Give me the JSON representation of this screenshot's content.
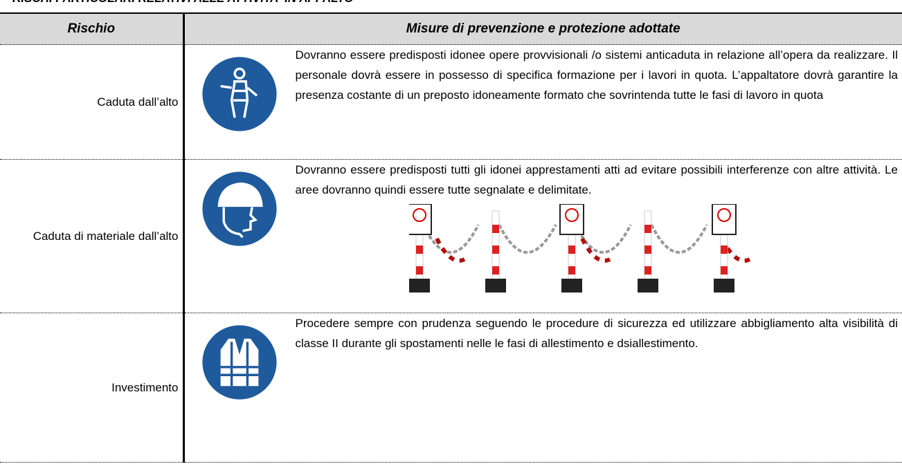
{
  "header": {
    "title": "RISCHI PARTICOLARI RELATIVI ALLE ATTIVITA' IN APPALTO"
  },
  "table": {
    "headers": [
      "Rischio",
      "Misure di prevenzione e protezione adottate"
    ],
    "rows": [
      [
        "Caduta dall’alto",
        "Dovranno essere predisposti idonee opere provvisionali /o sistemi anticaduta in relazione all’opera da realizzare. Il personale dovrà essere in possesso di specifica formazione per i lavori in quota. L’appaltatore dovrà garantire la presenza costante di un preposto idoneamente formato che sovrintenda tutte le fasi di lavoro in quota"
      ],
      [
        "Caduta di materiale dall’alto",
        "Dovranno essere predisposti tutti gli idonei apprestamenti atti ad evitare possibili interferenze con altre attività. Le aree dovranno quindi essere tutte segnalate e delimitate."
      ],
      [
        "Investimento",
        "Procedere sempre con prudenza seguendo le procedure di sicurezza ed utilizzare abbigliamento alta visibilità di classe II durante gli spostamenti nelle le fasi di allestimento e dsiallestimento."
      ]
    ]
  }
}
